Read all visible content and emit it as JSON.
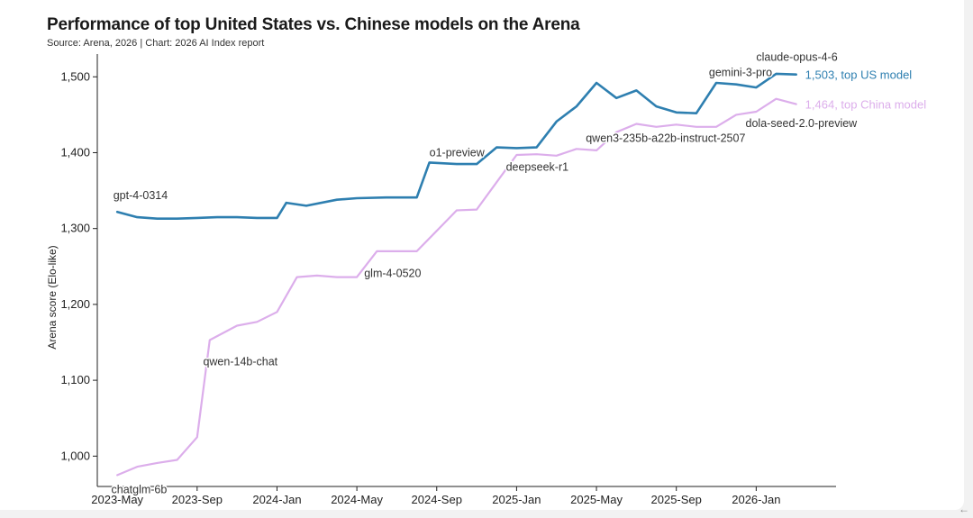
{
  "title": "Performance of top United States vs. Chinese models on the Arena",
  "subtitle": "Source: Arena, 2026 | Chart: 2026 AI Index report",
  "back_arrow": "←",
  "chart_data": {
    "type": "line",
    "title": "Performance of top United States vs. Chinese models on the Arena",
    "subtitle": "Source: Arena, 2026 | Chart: 2026 AI Index report",
    "xlabel": "",
    "ylabel": "Arena score (Elo-like)",
    "xlim": [
      "2023-04",
      "2026-05"
    ],
    "ylim": [
      960,
      1530
    ],
    "x_ticks": [
      "2023-May",
      "2023-Sep",
      "2024-Jan",
      "2024-May",
      "2024-Sep",
      "2025-Jan",
      "2025-May",
      "2025-Sep",
      "2026-Jan"
    ],
    "y_ticks": [
      "1,000",
      "1,100",
      "1,200",
      "1,300",
      "1,400",
      "1,500"
    ],
    "grid": false,
    "colors": {
      "us": "#2e7fb0",
      "china": "#dcaeeb",
      "text": "#333333"
    },
    "series": [
      {
        "name": "",
        "color": "#2e7fb0",
        "end_label": "1,503, top US model",
        "points": [
          [
            "2023-05-01",
            1322
          ],
          [
            "2023-06-01",
            1315
          ],
          [
            "2023-07-01",
            1313
          ],
          [
            "2023-08-01",
            1313
          ],
          [
            "2023-09-01",
            1314
          ],
          [
            "2023-10-01",
            1315
          ],
          [
            "2023-11-01",
            1315
          ],
          [
            "2023-12-01",
            1314
          ],
          [
            "2024-01-01",
            1314
          ],
          [
            "2024-01-15",
            1334
          ],
          [
            "2024-02-15",
            1330
          ],
          [
            "2024-04-01",
            1338
          ],
          [
            "2024-05-01",
            1340
          ],
          [
            "2024-06-15",
            1341
          ],
          [
            "2024-08-01",
            1341
          ],
          [
            "2024-08-20",
            1387
          ],
          [
            "2024-10-01",
            1385
          ],
          [
            "2024-11-01",
            1385
          ],
          [
            "2024-12-01",
            1407
          ],
          [
            "2025-01-01",
            1406
          ],
          [
            "2025-02-01",
            1407
          ],
          [
            "2025-03-01",
            1441
          ],
          [
            "2025-04-01",
            1461
          ],
          [
            "2025-05-01",
            1492
          ],
          [
            "2025-06-01",
            1472
          ],
          [
            "2025-07-01",
            1482
          ],
          [
            "2025-08-01",
            1461
          ],
          [
            "2025-09-01",
            1453
          ],
          [
            "2025-10-01",
            1452
          ],
          [
            "2025-11-01",
            1492
          ],
          [
            "2025-12-01",
            1490
          ],
          [
            "2026-01-01",
            1486
          ],
          [
            "2026-02-01",
            1504
          ],
          [
            "2026-03-01",
            1503
          ]
        ]
      },
      {
        "name": "",
        "color": "#dcaeeb",
        "end_label": "1,464, top China model",
        "points": [
          [
            "2023-05-01",
            975
          ],
          [
            "2023-06-01",
            986
          ],
          [
            "2023-07-01",
            991
          ],
          [
            "2023-08-01",
            995
          ],
          [
            "2023-09-01",
            1025
          ],
          [
            "2023-09-20",
            1153
          ],
          [
            "2023-11-01",
            1172
          ],
          [
            "2023-12-01",
            1177
          ],
          [
            "2024-01-01",
            1190
          ],
          [
            "2024-02-01",
            1236
          ],
          [
            "2024-03-01",
            1238
          ],
          [
            "2024-04-01",
            1236
          ],
          [
            "2024-05-01",
            1236
          ],
          [
            "2024-06-01",
            1270
          ],
          [
            "2024-07-01",
            1270
          ],
          [
            "2024-08-01",
            1270
          ],
          [
            "2024-09-01",
            1297
          ],
          [
            "2024-10-01",
            1324
          ],
          [
            "2024-11-01",
            1325
          ],
          [
            "2024-12-01",
            1361
          ],
          [
            "2025-01-01",
            1397
          ],
          [
            "2025-02-01",
            1398
          ],
          [
            "2025-03-01",
            1396
          ],
          [
            "2025-04-01",
            1405
          ],
          [
            "2025-05-01",
            1403
          ],
          [
            "2025-06-01",
            1427
          ],
          [
            "2025-07-01",
            1438
          ],
          [
            "2025-08-01",
            1434
          ],
          [
            "2025-09-01",
            1437
          ],
          [
            "2025-10-01",
            1434
          ],
          [
            "2025-11-01",
            1434
          ],
          [
            "2025-12-01",
            1450
          ],
          [
            "2026-01-01",
            1454
          ],
          [
            "2026-02-01",
            1471
          ],
          [
            "2026-03-01",
            1464
          ]
        ]
      }
    ],
    "annotations": [
      {
        "text": "gpt-4-0314",
        "x": "2023-04-25",
        "y": 1339
      },
      {
        "text": "chatglm-6b",
        "x": "2023-04-22",
        "y": 951
      },
      {
        "text": "qwen-14b-chat",
        "x": "2023-09-10",
        "y": 1120
      },
      {
        "text": "glm-4-0520",
        "x": "2024-05-12",
        "y": 1236
      },
      {
        "text": "o1-preview",
        "x": "2024-08-20",
        "y": 1395
      },
      {
        "text": "deepseek-r1",
        "x": "2024-12-15",
        "y": 1376
      },
      {
        "text": "qwen3-235b-a22b-instruct-2507",
        "x": "2025-04-15",
        "y": 1414
      },
      {
        "text": "gemini-3-pro",
        "x": "2025-10-20",
        "y": 1501
      },
      {
        "text": "claude-opus-4-6",
        "x": "2026-01-01",
        "y": 1521
      },
      {
        "text": "dola-seed-2.0-preview",
        "x": "2025-12-15",
        "y": 1434
      }
    ]
  }
}
